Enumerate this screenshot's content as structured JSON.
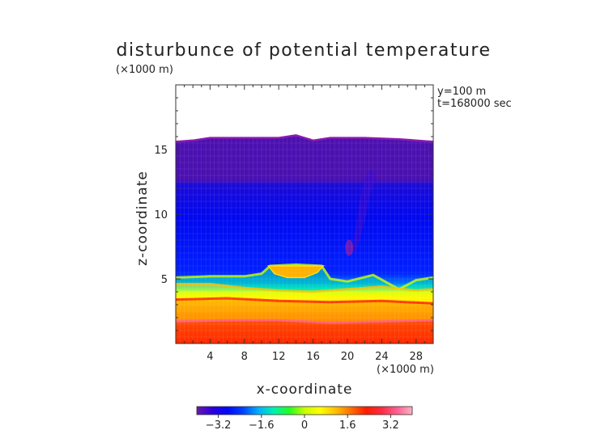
{
  "chart_data": {
    "type": "heatmap",
    "title": "disturbunce of potential temperature",
    "xlabel": "x-coordinate",
    "ylabel": "z-coordinate",
    "x_unit": "(×1000 m)",
    "y_unit": "(×1000 m)",
    "xlim": [
      0,
      30
    ],
    "ylim": [
      0,
      20
    ],
    "x_ticks": [
      4,
      8,
      12,
      16,
      20,
      24,
      28
    ],
    "y_ticks": [
      5,
      10,
      15
    ],
    "annotations": [
      "y=100 m",
      "t=168000 sec"
    ],
    "colorbar": {
      "min": -4,
      "max": 4,
      "ticks": [
        -3.2,
        -1.6,
        0,
        1.6,
        3.2
      ],
      "tick_labels": [
        "−3.2",
        "−1.6",
        "0",
        "1.6",
        "3.2"
      ],
      "colors": [
        "#6a1aa8",
        "#2a00e0",
        "#0008f8",
        "#0040ff",
        "#00b0ff",
        "#00f0b0",
        "#20ff20",
        "#c8ff00",
        "#ffff00",
        "#ffc000",
        "#ff7000",
        "#ff1a00",
        "#ff2a40",
        "#ff6090",
        "#ffb0c0"
      ]
    },
    "field_description_points": {
      "domain_top": [
        {
          "x": 0,
          "z": 15.6
        },
        {
          "x": 2,
          "z": 15.7
        },
        {
          "x": 4,
          "z": 15.9
        },
        {
          "x": 8,
          "z": 15.9
        },
        {
          "x": 12,
          "z": 15.9
        },
        {
          "x": 14,
          "z": 16.1
        },
        {
          "x": 16,
          "z": 15.7
        },
        {
          "x": 18,
          "z": 15.9
        },
        {
          "x": 22,
          "z": 15.9
        },
        {
          "x": 26,
          "z": 15.8
        },
        {
          "x": 30,
          "z": 15.6
        }
      ],
      "front_bands": [
        {
          "value": 0.0,
          "pts": [
            {
              "x": 0,
              "z": 5.1
            },
            {
              "x": 4,
              "z": 5.2
            },
            {
              "x": 8,
              "z": 5.2
            },
            {
              "x": 10,
              "z": 5.4
            },
            {
              "x": 11,
              "z": 6.0
            },
            {
              "x": 14,
              "z": 6.1
            },
            {
              "x": 17,
              "z": 6.0
            },
            {
              "x": 18,
              "z": 5.0
            },
            {
              "x": 20,
              "z": 4.8
            },
            {
              "x": 23,
              "z": 5.3
            },
            {
              "x": 26,
              "z": 4.2
            },
            {
              "x": 28,
              "z": 4.9
            },
            {
              "x": 30,
              "z": 5.1
            }
          ]
        },
        {
          "value": 1.0,
          "pts": [
            {
              "x": 0,
              "z": 4.6
            },
            {
              "x": 4,
              "z": 4.6
            },
            {
              "x": 8,
              "z": 4.3
            },
            {
              "x": 12,
              "z": 4.1
            },
            {
              "x": 16,
              "z": 4.0
            },
            {
              "x": 20,
              "z": 4.2
            },
            {
              "x": 24,
              "z": 4.4
            },
            {
              "x": 28,
              "z": 4.1
            },
            {
              "x": 30,
              "z": 4.2
            }
          ]
        },
        {
          "value": 2.0,
          "pts": [
            {
              "x": 0,
              "z": 3.4
            },
            {
              "x": 6,
              "z": 3.5
            },
            {
              "x": 12,
              "z": 3.3
            },
            {
              "x": 18,
              "z": 3.2
            },
            {
              "x": 24,
              "z": 3.3
            },
            {
              "x": 30,
              "z": 3.1
            }
          ]
        },
        {
          "value": 3.0,
          "pts": [
            {
              "x": 0,
              "z": 1.7
            },
            {
              "x": 6,
              "z": 1.8
            },
            {
              "x": 12,
              "z": 1.8
            },
            {
              "x": 18,
              "z": 1.6
            },
            {
              "x": 24,
              "z": 1.7
            },
            {
              "x": 30,
              "z": 1.8
            }
          ]
        }
      ]
    }
  }
}
